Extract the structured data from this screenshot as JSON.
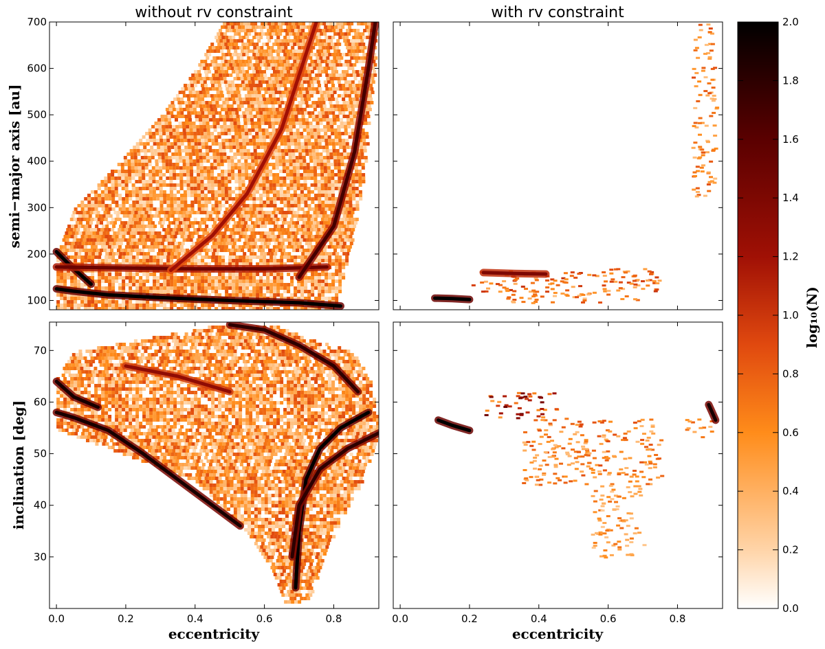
{
  "chart_data": [
    {
      "type": "heatmap",
      "title": "without rv constraint",
      "xlabel": "",
      "ylabel": "semi−major axis [au]",
      "xlim": [
        -0.02,
        0.93
      ],
      "ylim": [
        80,
        700
      ],
      "xticks": [],
      "yticks": [
        100,
        200,
        300,
        400,
        500,
        600,
        700
      ],
      "bands": [
        {
          "x": [
            0.0,
            0.05,
            0.15,
            0.3,
            0.5,
            0.7,
            0.82
          ],
          "y": [
            125,
            120,
            112,
            106,
            100,
            95,
            88
          ],
          "level": 2.0
        },
        {
          "x": [
            0.0,
            0.04,
            0.1
          ],
          "y": [
            205,
            175,
            135
          ],
          "level": 2.0
        },
        {
          "x": [
            0.0,
            0.2,
            0.4,
            0.6,
            0.78
          ],
          "y": [
            172,
            170,
            168,
            168,
            172
          ],
          "level": 1.5
        },
        {
          "x": [
            0.33,
            0.45,
            0.55,
            0.65,
            0.75
          ],
          "y": [
            165,
            240,
            330,
            470,
            700
          ],
          "level": 1.2
        },
        {
          "x": [
            0.7,
            0.8,
            0.86,
            0.9,
            0.92
          ],
          "y": [
            150,
            260,
            420,
            600,
            700
          ],
          "level": 1.7
        }
      ],
      "region": {
        "y": [
          80,
          140,
          200,
          300,
          400,
          500,
          600,
          700
        ],
        "xmin": [
          0.0,
          0.0,
          0.0,
          0.05,
          0.18,
          0.3,
          0.4,
          0.48
        ],
        "xmax": [
          0.8,
          0.82,
          0.84,
          0.87,
          0.89,
          0.9,
          0.92,
          0.92
        ]
      },
      "colorbar_value": "log10(N)"
    },
    {
      "type": "heatmap",
      "title": "with rv constraint",
      "xlabel": "",
      "ylabel": "",
      "xlim": [
        -0.02,
        0.93
      ],
      "ylim": [
        80,
        700
      ],
      "xticks": [],
      "yticks": [],
      "bands": [
        {
          "x": [
            0.1,
            0.15,
            0.2
          ],
          "y": [
            105,
            104,
            102
          ],
          "level": 2.0
        },
        {
          "x": [
            0.24,
            0.33,
            0.42
          ],
          "y": [
            160,
            158,
            157
          ],
          "level": 1.4
        }
      ],
      "clusters": [
        {
          "x": [
            0.2,
            0.75
          ],
          "y": [
            120,
            165
          ],
          "level": 0.7
        },
        {
          "x": [
            0.3,
            0.7
          ],
          "y": [
            95,
            125
          ],
          "level": 0.6
        },
        {
          "x": [
            0.6,
            0.75
          ],
          "y": [
            140,
            170
          ],
          "level": 0.7
        },
        {
          "x": [
            0.84,
            0.91
          ],
          "y": [
            320,
            700
          ],
          "level": 0.6
        }
      ]
    },
    {
      "type": "heatmap",
      "title": "",
      "xlabel": "eccentricity",
      "ylabel": "inclination [deg]",
      "xlim": [
        -0.02,
        0.93
      ],
      "ylim": [
        20,
        75.5
      ],
      "xticks": [
        "0.0",
        "0.2",
        "0.4",
        "0.6",
        "0.8"
      ],
      "yticks": [
        30,
        40,
        50,
        60,
        70
      ],
      "bands": [
        {
          "x": [
            0.0,
            0.05,
            0.15,
            0.25,
            0.35,
            0.45,
            0.53
          ],
          "y": [
            58,
            57,
            54.5,
            50,
            45,
            40,
            36
          ],
          "level": 1.9
        },
        {
          "x": [
            0.0,
            0.05,
            0.12
          ],
          "y": [
            64,
            61,
            59
          ],
          "level": 1.9
        },
        {
          "x": [
            0.5,
            0.6,
            0.7,
            0.8,
            0.87
          ],
          "y": [
            75,
            74,
            71,
            67,
            62
          ],
          "level": 1.8
        },
        {
          "x": [
            0.9,
            0.82,
            0.76,
            0.72,
            0.7,
            0.69
          ],
          "y": [
            58,
            55,
            51,
            45,
            35,
            24
          ],
          "level": 2.0
        },
        {
          "x": [
            0.93,
            0.84,
            0.76,
            0.7,
            0.68
          ],
          "y": [
            54,
            51,
            47,
            40,
            30
          ],
          "level": 1.8
        },
        {
          "x": [
            0.2,
            0.35,
            0.5
          ],
          "y": [
            67,
            65,
            62
          ],
          "level": 1.3
        }
      ],
      "region": {
        "y": [
          21,
          28,
          35,
          45,
          55,
          65,
          70,
          75
        ],
        "xmin": [
          0.66,
          0.62,
          0.55,
          0.4,
          0.0,
          0.0,
          0.05,
          0.45
        ],
        "xmax": [
          0.72,
          0.76,
          0.8,
          0.88,
          0.93,
          0.9,
          0.85,
          0.63
        ]
      },
      "colorbar_value": "log10(N)"
    },
    {
      "type": "heatmap",
      "title": "",
      "xlabel": "eccentricity",
      "ylabel": "",
      "xlim": [
        -0.02,
        0.93
      ],
      "ylim": [
        20,
        75.5
      ],
      "xticks": [
        "0.0",
        "0.2",
        "0.4",
        "0.6",
        "0.8"
      ],
      "yticks": [],
      "bands": [
        {
          "x": [
            0.11,
            0.15,
            0.2
          ],
          "y": [
            56.5,
            55.5,
            54.5
          ],
          "level": 2.0
        },
        {
          "x": [
            0.89,
            0.9,
            0.91
          ],
          "y": [
            59.5,
            58,
            56.5
          ],
          "level": 1.9
        }
      ],
      "clusters": [
        {
          "x": [
            0.24,
            0.45
          ],
          "y": [
            57,
            62
          ],
          "level": 1.0
        },
        {
          "x": [
            0.35,
            0.75
          ],
          "y": [
            44,
            57
          ],
          "level": 0.6
        },
        {
          "x": [
            0.55,
            0.7
          ],
          "y": [
            30,
            44
          ],
          "level": 0.5
        },
        {
          "x": [
            0.82,
            0.9
          ],
          "y": [
            53,
            57
          ],
          "level": 0.6
        }
      ]
    },
    {
      "type": "colorbar",
      "label": "log10(N)",
      "range": [
        0.0,
        2.0
      ],
      "ticks": [
        "0.0",
        "0.2",
        "0.4",
        "0.6",
        "0.8",
        "1.0",
        "1.2",
        "1.4",
        "1.6",
        "1.8",
        "2.0"
      ],
      "colormap": "gist_heat_r",
      "colors": [
        "#ffffff",
        "#ffd4a8",
        "#ff8c1a",
        "#e0490f",
        "#a01005",
        "#5a0000",
        "#000000"
      ]
    }
  ],
  "labels": {
    "title_left": "without rv constraint",
    "title_right": "with rv constraint",
    "ylabel_top": "semi−major axis [au]",
    "ylabel_bottom": "inclination [deg]",
    "xlabel_left": "eccentricity",
    "xlabel_right": "eccentricity",
    "colorbar_label": "log₁₀(N)"
  }
}
